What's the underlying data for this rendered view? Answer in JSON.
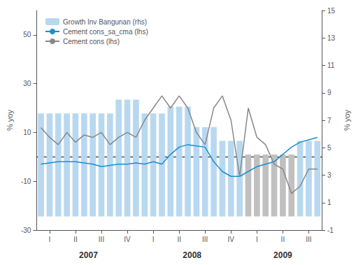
{
  "chart_data": {
    "type": "bar",
    "categories": [
      null,
      "I",
      null,
      null,
      "II",
      null,
      null,
      "III",
      null,
      null,
      "IV",
      null,
      null,
      "I",
      null,
      null,
      "II",
      null,
      null,
      "III",
      null,
      null,
      "IV",
      null,
      null,
      "I",
      null,
      null,
      "II",
      null,
      null,
      "III",
      null
    ],
    "annotations": [
      "2007",
      "2008",
      "2009"
    ],
    "ylabel": "% yoy",
    "y2label": "% yoy",
    "ylim": [
      -30,
      60
    ],
    "yticks": [
      -30,
      -10,
      10,
      30,
      50
    ],
    "y2lim": [
      -1,
      15
    ],
    "y2ticks": [
      -1,
      1,
      3,
      5,
      7,
      9,
      11,
      13,
      15
    ],
    "grid": false,
    "legend": "upper left",
    "series": [
      {
        "name": "Growth Inv Bangunan (rhs)",
        "type": "bar",
        "axis": "y2",
        "color": "#b8d8f0",
        "colors": [
          "#b8d8f0",
          "#b8d8f0",
          "#b8d8f0",
          "#b8d8f0",
          "#b8d8f0",
          "#b8d8f0",
          "#b8d8f0",
          "#b8d8f0",
          "#b8d8f0",
          "#b8d8f0",
          "#b8d8f0",
          "#b8d8f0",
          "#b8d8f0",
          "#b8d8f0",
          "#b8d8f0",
          "#b8d8f0",
          "#b8d8f0",
          "#b8d8f0",
          "#b8d8f0",
          "#b8d8f0",
          "#b8d8f0",
          "#b8d8f0",
          "#b8d8f0",
          "#b8d8f0",
          "#c0c0c0",
          "#c0c0c0",
          "#c0c0c0",
          "#c0c0c0",
          "#c0c0c0",
          "#c0c0c0",
          "#b8d8f0",
          "#b8d8f0",
          "#b8d8f0"
        ],
        "values": [
          7.5,
          7.5,
          7.5,
          7.5,
          7.5,
          7.5,
          7.5,
          7.5,
          7.5,
          8.5,
          8.5,
          8.5,
          7.5,
          7.5,
          7.5,
          8.0,
          8.0,
          8.0,
          6.5,
          6.5,
          6.5,
          5.5,
          5.5,
          5.5,
          4.5,
          4.5,
          4.5,
          4.5,
          4.5,
          4.5,
          5.5,
          5.5,
          5.5
        ]
      },
      {
        "name": "Cement cons_sa_cma (lhs)",
        "type": "line",
        "color": "#1a8fcf",
        "values": [
          -3,
          -2.5,
          -2,
          -2,
          -2,
          -2.5,
          -3,
          -4,
          -3.5,
          -3,
          -3,
          -2.5,
          -3,
          -2,
          -3,
          1,
          4,
          5,
          4.5,
          4,
          -2,
          -6,
          -8,
          -8,
          -6,
          -4,
          -3,
          -2,
          1,
          4,
          6,
          7,
          8
        ]
      },
      {
        "name": "Cement cons (lhs)",
        "type": "line",
        "color": "#888888",
        "values": [
          12,
          8,
          5,
          10,
          6,
          9,
          8,
          10,
          5,
          8,
          10,
          8,
          15,
          20,
          25,
          20,
          25,
          20,
          10,
          5,
          20,
          25,
          15,
          -8,
          20,
          8,
          5,
          -3,
          -5,
          -15,
          -12,
          -5,
          -5
        ]
      }
    ]
  }
}
